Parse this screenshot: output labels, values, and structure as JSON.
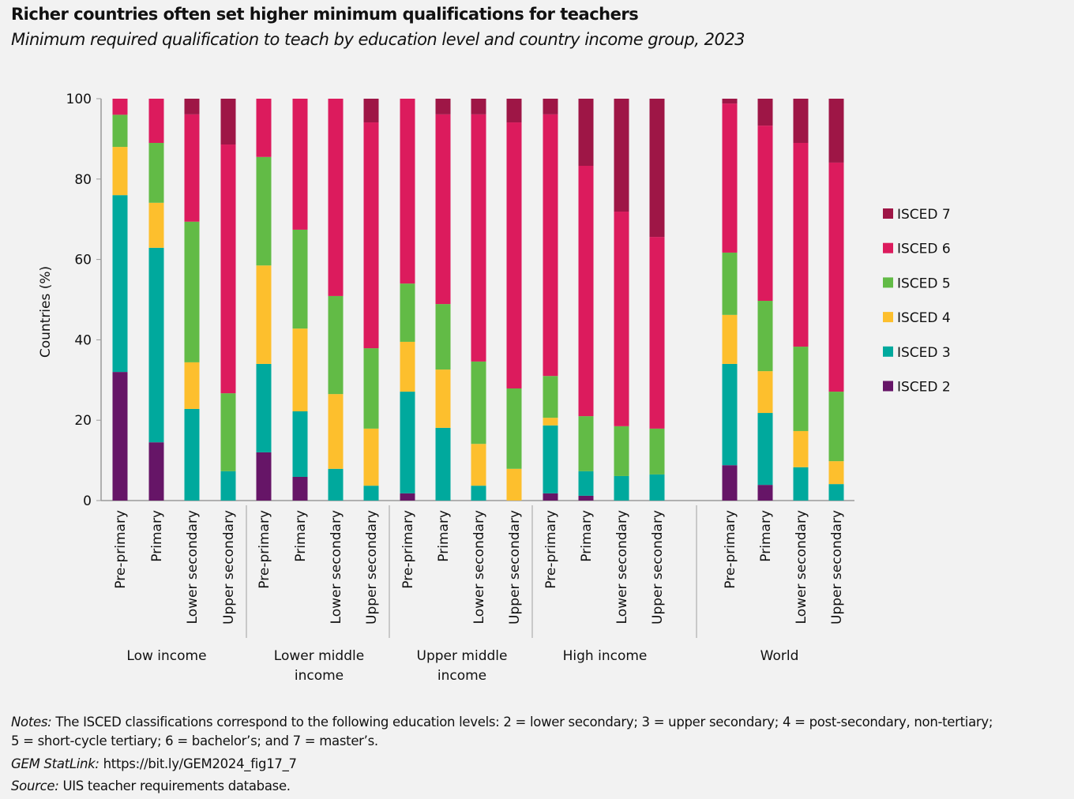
{
  "title": "Richer countries often set higher minimum qualifications for teachers",
  "subtitle": "Minimum required qualification to teach by education level and country income group, 2023",
  "notes": {
    "notes_label": "Notes:",
    "notes_text": " The ISCED classifications correspond to the following education levels: 2 = lower secondary; 3 = upper secondary; 4 = post-secondary, non-tertiary;",
    "notes_text2": "5 = short-cycle tertiary; 6 = bachelor’s; and 7 = master’s.",
    "statlink_label": "GEM StatLink:",
    "statlink_text": " https://bit.ly/GEM2024_fig17_7",
    "source_label": "Source:",
    "source_text": " UIS teacher requirements database."
  },
  "chart_data": {
    "type": "bar",
    "stacked": true,
    "ylabel": "Countries (%)",
    "ylim": [
      0,
      100
    ],
    "yticks": [
      0,
      20,
      40,
      60,
      80,
      100
    ],
    "grid": false,
    "legend_position": "right",
    "groups": [
      {
        "label": "Low income",
        "categories": [
          "Pre-primary",
          "Primary",
          "Lower secondary",
          "Upper secondary"
        ]
      },
      {
        "label": "Lower middle income",
        "categories": [
          "Pre-primary",
          "Primary",
          "Lower secondary",
          "Upper secondary"
        ]
      },
      {
        "label": "Upper middle income",
        "categories": [
          "Pre-primary",
          "Primary",
          "Lower secondary",
          "Upper secondary"
        ]
      },
      {
        "label": "High income",
        "categories": [
          "Pre-primary",
          "Primary",
          "Lower secondary",
          "Upper secondary"
        ]
      },
      {
        "label": "World",
        "categories": [
          "Pre-primary",
          "Primary",
          "Lower secondary",
          "Upper secondary"
        ]
      }
    ],
    "series": [
      {
        "name": "ISCED 2",
        "color": "#661567",
        "values": [
          32,
          14.5,
          0,
          0,
          12,
          5.9,
          0,
          0,
          1.8,
          0,
          0,
          0,
          1.8,
          1.2,
          0,
          0,
          8.8,
          3.9,
          0,
          0
        ]
      },
      {
        "name": "ISCED 3",
        "color": "#00a99d",
        "values": [
          44,
          48.4,
          22.8,
          7.3,
          22,
          16.3,
          7.9,
          3.7,
          25.3,
          18.1,
          3.7,
          0,
          16.9,
          6.1,
          6.1,
          6.5,
          25.2,
          17.9,
          8.3,
          4.1
        ]
      },
      {
        "name": "ISCED 4",
        "color": "#fdbf2d",
        "values": [
          12,
          11.2,
          11.6,
          0,
          24.5,
          20.6,
          18.6,
          14.2,
          12.4,
          14.5,
          10.4,
          7.9,
          1.9,
          0,
          0,
          0,
          12.2,
          10.4,
          9,
          5.7
        ]
      },
      {
        "name": "ISCED 5",
        "color": "#62bb46",
        "values": [
          8,
          14.9,
          35,
          19.4,
          27,
          24.6,
          24.4,
          20,
          14.5,
          16.3,
          20.5,
          20,
          10.4,
          13.7,
          12.4,
          11.4,
          15.5,
          17.5,
          21,
          17.3
        ]
      },
      {
        "name": "ISCED 6",
        "color": "#dc1b5d",
        "values": [
          4,
          11,
          26.7,
          61.9,
          14.5,
          32.6,
          49.1,
          56.2,
          46,
          47.2,
          61.5,
          66.2,
          65.1,
          62.3,
          53.4,
          47.7,
          37.1,
          43.6,
          50.7,
          57
        ]
      },
      {
        "name": "ISCED 7",
        "color": "#9e1646",
        "values": [
          0,
          0,
          3.9,
          11.4,
          0,
          0,
          0,
          5.9,
          0,
          3.9,
          3.9,
          5.9,
          3.9,
          16.7,
          28.1,
          34.4,
          1.2,
          6.7,
          11,
          15.9
        ]
      }
    ]
  }
}
